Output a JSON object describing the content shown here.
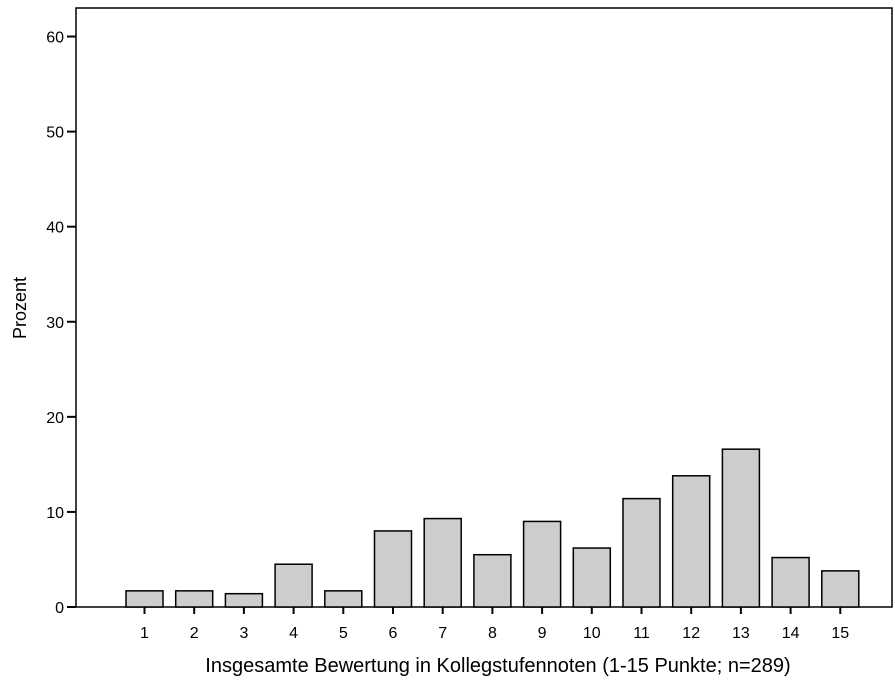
{
  "chart_data": {
    "type": "bar",
    "title": "",
    "xlabel": "Insgesamte Bewertung in Kollegstufennoten (1-15 Punkte; n=289)",
    "ylabel": "Prozent",
    "ylim": [
      0,
      63
    ],
    "yticks": [
      0,
      10,
      20,
      30,
      40,
      50,
      60
    ],
    "categories": [
      "1",
      "2",
      "3",
      "4",
      "5",
      "6",
      "7",
      "8",
      "9",
      "10",
      "11",
      "12",
      "13",
      "14",
      "15"
    ],
    "values": [
      1.7,
      1.7,
      1.4,
      4.5,
      1.7,
      8.0,
      9.3,
      5.5,
      9.0,
      6.2,
      11.4,
      13.8,
      16.6,
      5.2,
      3.8
    ],
    "grid": false,
    "legend": "none",
    "bar_color": "#cdcdcd",
    "outline_color": "#000000"
  }
}
